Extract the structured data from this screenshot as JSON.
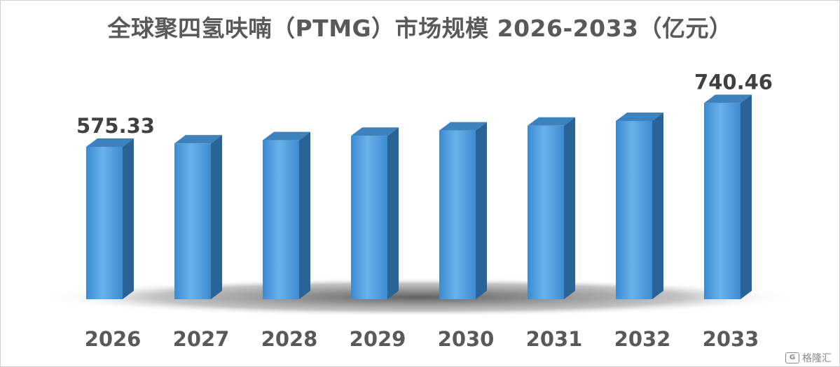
{
  "chart_data": {
    "type": "bar",
    "title": "全球聚四氢呋喃（PTMG）市场规模 2026-2033（亿元）",
    "categories": [
      "2026",
      "2027",
      "2028",
      "2029",
      "2030",
      "2031",
      "2032",
      "2033"
    ],
    "values": [
      575.33,
      588,
      600,
      617,
      637,
      655,
      673,
      740.46
    ],
    "data_labels": [
      {
        "index": 0,
        "text": "575.33"
      },
      {
        "index": 7,
        "text": "740.46"
      }
    ],
    "ylim": [
      0,
      760
    ],
    "grid": false,
    "style": "3d-column",
    "colors": {
      "bar_front": "#4f9fdc",
      "bar_side": "#2a6397",
      "bar_top": "#3d82bd"
    }
  },
  "watermark": {
    "text": "格隆汇",
    "icon": "g-logo-icon",
    "logo_letter": "G"
  }
}
